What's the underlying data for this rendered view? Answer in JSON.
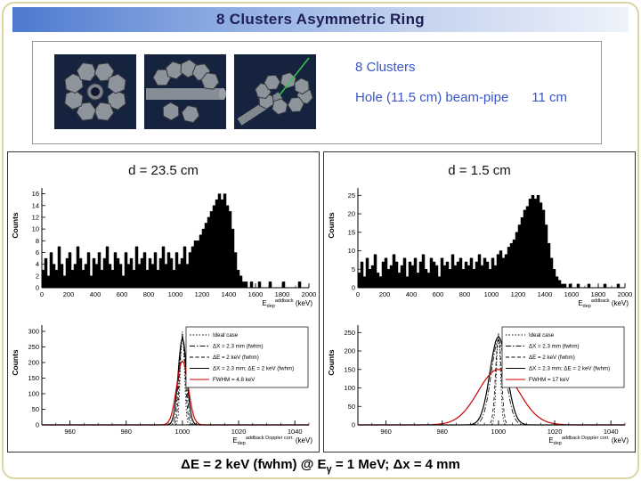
{
  "slide": {
    "title": "8 Clusters Asymmetric Ring",
    "caption": {
      "pre": "ΔE = 2 keV (fwhm)  @ E",
      "sub": "γ",
      "post": " = 1 MeV;  Δx = 4 mm"
    }
  },
  "info_box": {
    "line1": "8 Clusters",
    "line2a": "Hole (11.5 cm) beam-pipe",
    "line2b": "11 cm",
    "text_color": "#3a55c8"
  },
  "panels": [
    {
      "title": "d = 23.5 cm"
    },
    {
      "title": "d = 1.5 cm"
    }
  ],
  "colors": {
    "banner_blue": "#4d79cf",
    "info_text_blue": "#3a55c8",
    "histogram_black": "#000000",
    "fit_red": "#cc0000",
    "render_background_navy": "#16233e",
    "frame_khaki": "#dcd5a4"
  },
  "chart_data": [
    {
      "id": "spec-left",
      "type": "bar",
      "panel": "d = 23.5 cm",
      "title": "",
      "ylabel": "Counts",
      "xlabel": {
        "base": "E",
        "sub": "dep",
        "sup": "addback",
        "unit": " (keV)"
      },
      "x_min": 0,
      "x_max": 2000,
      "bin_width": 20,
      "x_ticks": [
        0,
        200,
        400,
        600,
        800,
        1000,
        1200,
        1400,
        1600,
        1800,
        2000
      ],
      "x_minor_step": 100,
      "y_max": 17,
      "y_ticks": [
        0,
        2,
        4,
        6,
        8,
        10,
        12,
        14,
        16
      ],
      "values": [
        3,
        5,
        2,
        6,
        4,
        3,
        7,
        4,
        2,
        5,
        6,
        3,
        4,
        7,
        5,
        3,
        4,
        6,
        2,
        5,
        4,
        6,
        3,
        5,
        7,
        4,
        3,
        6,
        5,
        4,
        2,
        6,
        4,
        5,
        3,
        7,
        4,
        5,
        6,
        3,
        5,
        4,
        6,
        3,
        5,
        7,
        4,
        6,
        5,
        3,
        6,
        4,
        5,
        7,
        4,
        6,
        7,
        8,
        8,
        9,
        10,
        11,
        12,
        13,
        14,
        15,
        16,
        15,
        16,
        14,
        13,
        10,
        6,
        3,
        2,
        1,
        1,
        0,
        1,
        0,
        0,
        1,
        0,
        0,
        0,
        1,
        0,
        0,
        0,
        0,
        1,
        0,
        0,
        0,
        0,
        0,
        1,
        0,
        0,
        0
      ]
    },
    {
      "id": "spec-right",
      "type": "bar",
      "panel": "d = 1.5 cm",
      "title": "",
      "ylabel": "Counts",
      "xlabel": {
        "base": "E",
        "sub": "dep",
        "sup": "addback",
        "unit": " (keV)"
      },
      "x_min": 0,
      "x_max": 2000,
      "bin_width": 20,
      "x_ticks": [
        0,
        200,
        400,
        600,
        800,
        1000,
        1200,
        1400,
        1600,
        1800,
        2000
      ],
      "x_minor_step": 100,
      "y_max": 27,
      "y_ticks": [
        0,
        5,
        10,
        15,
        20,
        25
      ],
      "values": [
        4,
        7,
        3,
        8,
        5,
        6,
        9,
        4,
        3,
        7,
        8,
        5,
        6,
        9,
        7,
        4,
        6,
        8,
        3,
        7,
        6,
        8,
        4,
        7,
        9,
        5,
        4,
        8,
        7,
        6,
        3,
        8,
        6,
        7,
        5,
        9,
        6,
        7,
        8,
        5,
        7,
        6,
        8,
        5,
        7,
        9,
        6,
        8,
        7,
        5,
        8,
        6,
        9,
        10,
        8,
        9,
        11,
        12,
        13,
        15,
        17,
        19,
        21,
        22,
        24,
        25,
        24,
        25,
        23,
        21,
        17,
        12,
        8,
        5,
        3,
        2,
        1,
        1,
        0,
        1,
        0,
        0,
        1,
        0,
        0,
        0,
        1,
        0,
        0,
        0,
        0,
        0,
        1,
        0,
        0,
        0,
        0,
        1,
        0,
        0
      ]
    },
    {
      "id": "peak-left",
      "type": "line",
      "panel": "d = 23.5 cm",
      "title": "",
      "ylabel": "Counts",
      "xlabel": {
        "base": "E",
        "sub": "dep",
        "sup": "addback Doppler corr.",
        "unit": " (keV)"
      },
      "x_min": 950,
      "x_max": 1045,
      "x_ticks": [
        960,
        980,
        1000,
        1020,
        1040
      ],
      "x_minor_step": 5,
      "y_max": 320,
      "y_ticks": [
        0,
        50,
        100,
        150,
        200,
        250,
        300
      ],
      "legend_position": "upper-right",
      "series": [
        {
          "label": "Ideal case",
          "dash": "dot",
          "color": "#000000",
          "center": 1000,
          "amp": 300,
          "sigma": 0.7
        },
        {
          "label": "ΔX = 2.3 mm (fwhm)",
          "dash": "dashdot",
          "color": "#000000",
          "center": 1000,
          "amp": 285,
          "sigma": 1.2
        },
        {
          "label": "ΔE = 2 keV (fwhm)",
          "dash": "dash",
          "color": "#000000",
          "center": 1000,
          "amp": 292,
          "sigma": 0.95
        },
        {
          "label": "ΔX = 2.3 mm; ΔE = 2 keV (fwhm)",
          "dash": "solid",
          "color": "#000000",
          "center": 1000,
          "amp": 278,
          "sigma": 1.5,
          "width": 1.2
        },
        {
          "label": "FWHM = 4.8 keV",
          "dash": "solid",
          "color": "#cc0000",
          "center": 1000,
          "amp": 205,
          "sigma": 2.04,
          "width": 1.2
        }
      ]
    },
    {
      "id": "peak-right",
      "type": "line",
      "panel": "d = 1.5 cm",
      "title": "",
      "ylabel": "Counts",
      "xlabel": {
        "base": "E",
        "sub": "dep",
        "sup": "addback Doppler corr.",
        "unit": " (keV)"
      },
      "x_min": 950,
      "x_max": 1045,
      "x_ticks": [
        960,
        980,
        1000,
        1020,
        1040
      ],
      "x_minor_step": 5,
      "y_max": 270,
      "y_ticks": [
        0,
        50,
        100,
        150,
        200,
        250
      ],
      "legend_position": "upper-right",
      "series": [
        {
          "label": "Ideal case",
          "dash": "dot",
          "color": "#000000",
          "center": 1000,
          "amp": 250,
          "sigma": 0.7
        },
        {
          "label": "ΔX = 2.3 mm (fwhm)",
          "dash": "dashdot",
          "color": "#000000",
          "center": 1000,
          "amp": 228,
          "sigma": 2.6
        },
        {
          "label": "ΔE = 2 keV (fwhm)",
          "dash": "dash",
          "color": "#000000",
          "center": 1000,
          "amp": 243,
          "sigma": 1.0
        },
        {
          "label": "ΔX = 2.3 mm; ΔE = 2 keV (fwhm)",
          "dash": "solid",
          "color": "#000000",
          "center": 1000,
          "amp": 238,
          "sigma": 3.0,
          "width": 1.2
        },
        {
          "label": "FWHM = 17 keV",
          "dash": "solid",
          "color": "#cc0000",
          "center": 1000,
          "amp": 150,
          "sigma": 7.2,
          "width": 1.2
        }
      ]
    }
  ]
}
